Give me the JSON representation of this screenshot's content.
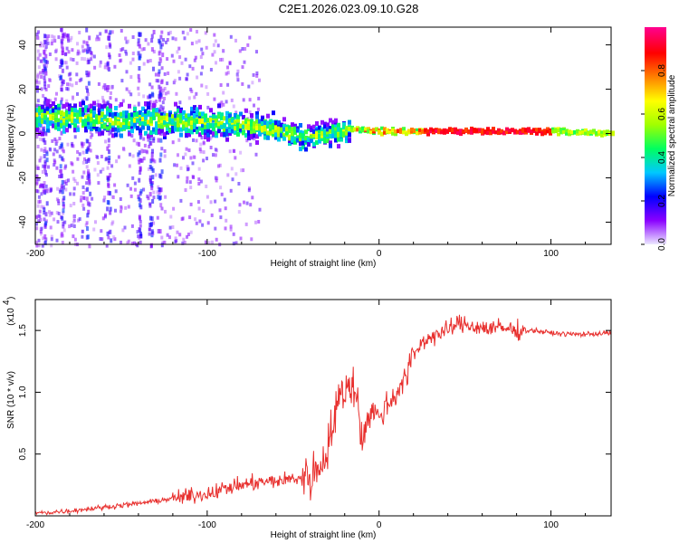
{
  "title": "C2E1.2026.023.09.10.G28",
  "chart_data": [
    {
      "type": "heatmap",
      "xlabel": "Height of straight line (km)",
      "ylabel": "Frequency (Hz)",
      "xlim": [
        -200,
        135
      ],
      "ylim": [
        -50,
        48
      ],
      "xticks": [
        "-200",
        "-100",
        "0",
        "100"
      ],
      "yticks": [
        "-40",
        "-20",
        "0",
        "20",
        "40"
      ],
      "colorbar": {
        "label": "Normalized spectral amplitude",
        "range": [
          0,
          1
        ],
        "ticks": [
          "0.0",
          "0.2",
          "0.4",
          "0.6",
          "0.8"
        ],
        "colors": [
          "#ece8ff",
          "#8a00ff",
          "#0000ff",
          "#00c8ff",
          "#00ff60",
          "#a0ff00",
          "#ffff00",
          "#ff8000",
          "#ff0000",
          "#ff0090"
        ]
      },
      "ridge_frequency": [
        {
          "x": -200,
          "y": 8
        },
        {
          "x": -150,
          "y": 6
        },
        {
          "x": -100,
          "y": 5
        },
        {
          "x": -70,
          "y": 3
        },
        {
          "x": -45,
          "y": -2
        },
        {
          "x": -30,
          "y": 0
        },
        {
          "x": -15,
          "y": 2
        },
        {
          "x": 0,
          "y": 1
        },
        {
          "x": 50,
          "y": 1
        },
        {
          "x": 100,
          "y": 1
        },
        {
          "x": 135,
          "y": 0
        }
      ]
    },
    {
      "type": "line",
      "xlabel": "Height of straight line (km)",
      "ylabel": "SNR (10 * v/v)",
      "y_multiplier": "(x10",
      "y_multiplier_exp": "4",
      "xlim": [
        -200,
        135
      ],
      "ylim": [
        0,
        1.75
      ],
      "xticks": [
        "-200",
        "-100",
        "0",
        "100"
      ],
      "yticks": [
        "0.5",
        "1.0",
        "1.5"
      ],
      "line_color": "#e8302e",
      "series": [
        {
          "x": [
            -200,
            -180,
            -160,
            -140,
            -120,
            -100,
            -90,
            -80,
            -70,
            -60,
            -50,
            -40,
            -35,
            -30,
            -25,
            -20,
            -17,
            -15,
            -12,
            -10,
            -5,
            0,
            5,
            10,
            15,
            20,
            25,
            30,
            40,
            45,
            50,
            60,
            70,
            80,
            90,
            100,
            110,
            120,
            135
          ],
          "values": [
            0.02,
            0.04,
            0.07,
            0.1,
            0.14,
            0.18,
            0.22,
            0.25,
            0.27,
            0.28,
            0.3,
            0.32,
            0.38,
            0.55,
            0.85,
            1.05,
            1.0,
            1.1,
            0.9,
            0.6,
            0.85,
            0.8,
            0.9,
            1.0,
            1.1,
            1.3,
            1.4,
            1.45,
            1.5,
            1.55,
            1.55,
            1.52,
            1.52,
            1.5,
            1.5,
            1.48,
            1.47,
            1.47,
            1.48
          ]
        }
      ]
    }
  ]
}
